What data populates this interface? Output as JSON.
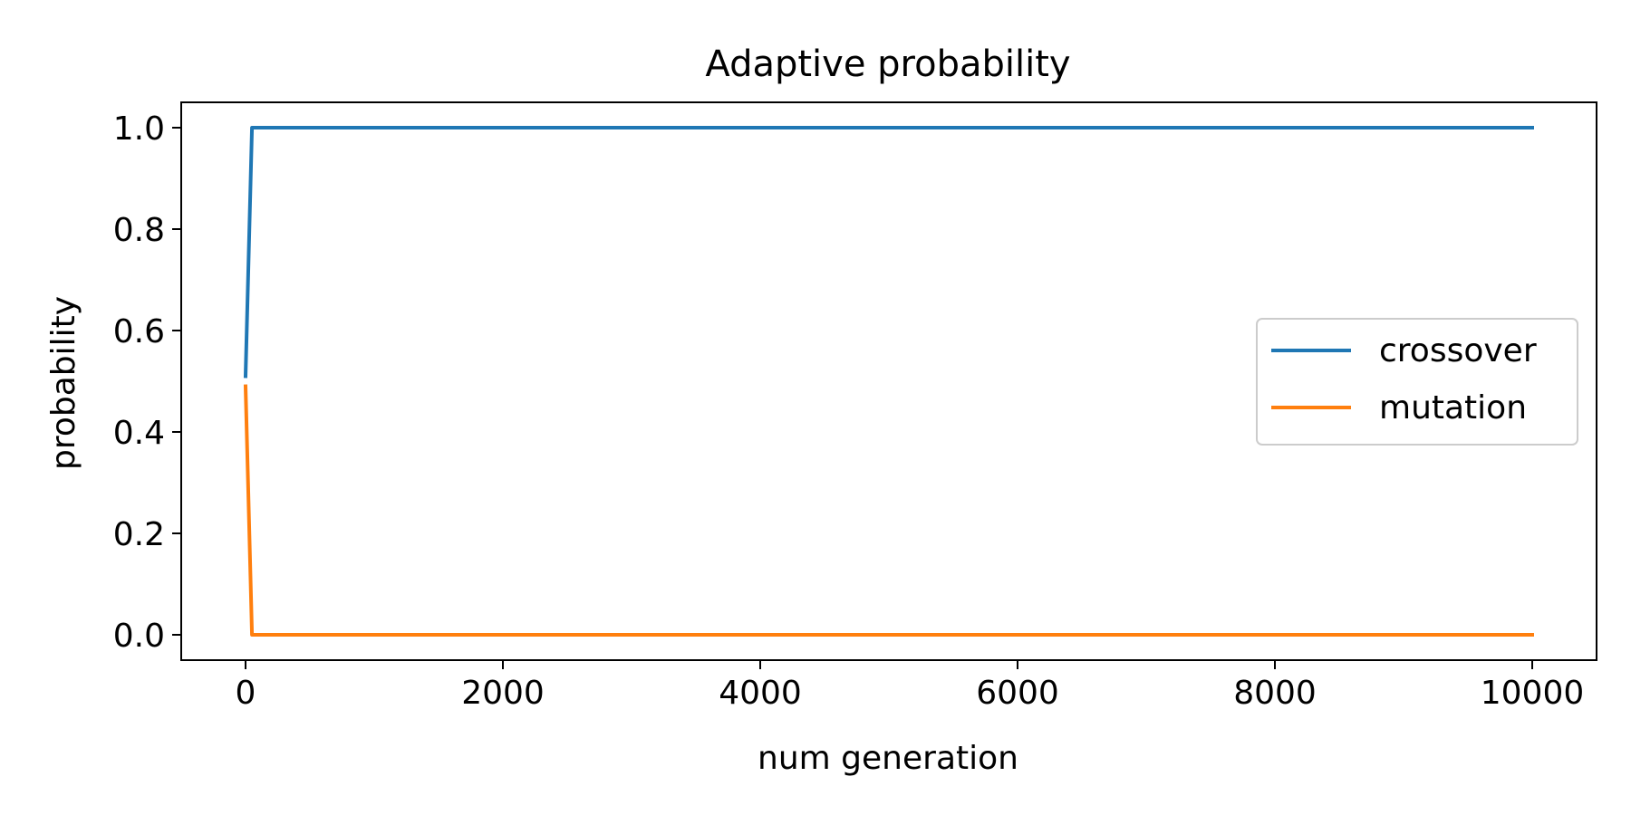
{
  "chart_data": {
    "type": "line",
    "title": "Adaptive probability",
    "xlabel": "num generation",
    "ylabel": "probability",
    "xlim": [
      -500,
      10500
    ],
    "ylim": [
      -0.05,
      1.05
    ],
    "xticks": [
      0,
      2000,
      4000,
      6000,
      8000,
      10000
    ],
    "xtick_labels": [
      "0",
      "2000",
      "4000",
      "6000",
      "8000",
      "10000"
    ],
    "yticks": [
      0.0,
      0.2,
      0.4,
      0.6,
      0.8,
      1.0
    ],
    "ytick_labels": [
      "0.0",
      "0.2",
      "0.4",
      "0.6",
      "0.8",
      "1.0"
    ],
    "grid": false,
    "legend_position": "center-right",
    "series": [
      {
        "name": "crossover",
        "color": "#1f77b4",
        "x": [
          0,
          50,
          10000
        ],
        "y": [
          0.51,
          1.0,
          1.0
        ]
      },
      {
        "name": "mutation",
        "color": "#ff7f0e",
        "x": [
          0,
          50,
          10000
        ],
        "y": [
          0.49,
          0.0,
          0.0
        ]
      }
    ]
  }
}
